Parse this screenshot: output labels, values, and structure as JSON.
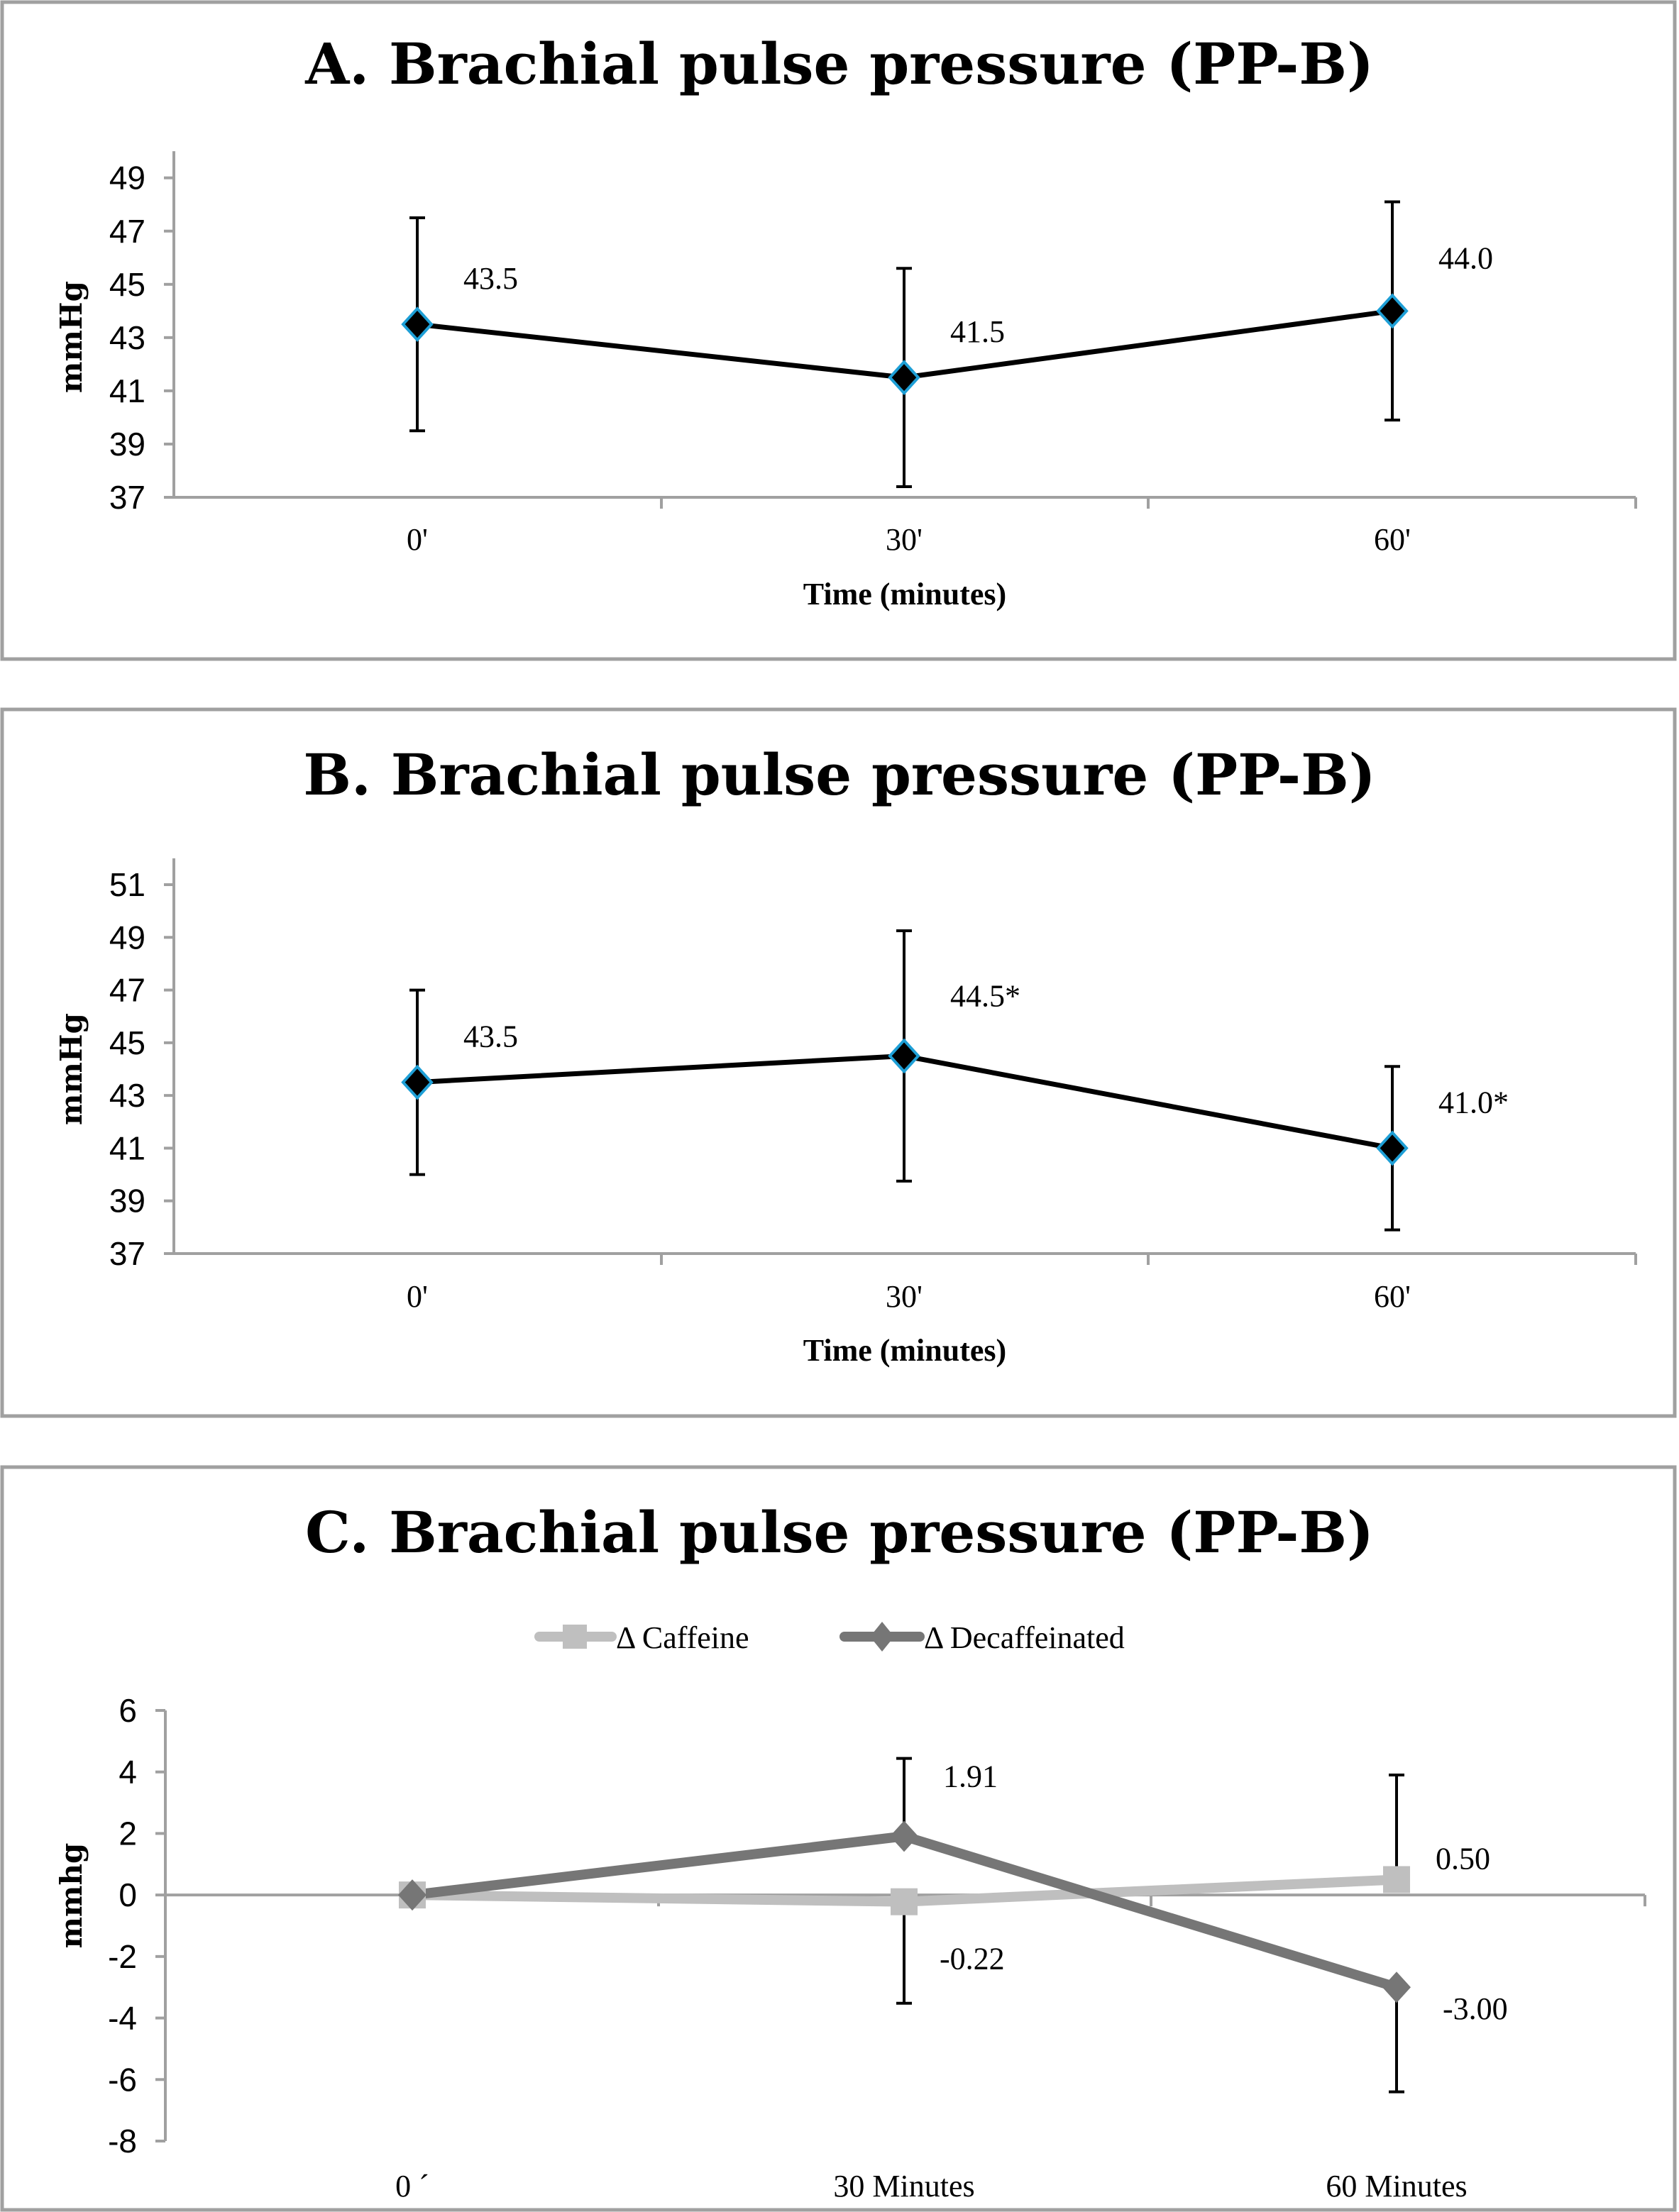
{
  "chart_data": [
    {
      "type": "line",
      "title": "A. Brachial pulse pressure (PP-B)",
      "xlabel": "Time (minutes)",
      "ylabel": "mmHg",
      "categories": [
        "0'",
        "30'",
        "60'"
      ],
      "ylim": [
        37,
        50
      ],
      "yticks": [
        37,
        39,
        41,
        43,
        45,
        47,
        49
      ],
      "grid": false,
      "legend": "none",
      "series": [
        {
          "name": "PP-B",
          "values": [
            43.5,
            41.5,
            44.0
          ],
          "errors": [
            4.0,
            4.1,
            4.1
          ],
          "labels": [
            "43.5",
            "41.5",
            "44.0"
          ],
          "line_color": "#000000",
          "marker": "diamond",
          "marker_fill": "#000000",
          "marker_stroke": "#1e9fd6"
        }
      ]
    },
    {
      "type": "line",
      "title": "B. Brachial pulse pressure (PP-B)",
      "xlabel": "Time (minutes)",
      "ylabel": "mmHg",
      "categories": [
        "0'",
        "30'",
        "60'"
      ],
      "ylim": [
        37,
        52
      ],
      "yticks": [
        37,
        39,
        41,
        43,
        45,
        47,
        49,
        51
      ],
      "grid": false,
      "legend": "none",
      "series": [
        {
          "name": "PP-B",
          "values": [
            43.5,
            44.5,
            41.0
          ],
          "errors": [
            3.5,
            4.75,
            3.1
          ],
          "labels": [
            "43.5",
            "44.5*",
            "41.0*"
          ],
          "line_color": "#000000",
          "marker": "diamond",
          "marker_fill": "#000000",
          "marker_stroke": "#1e9fd6"
        }
      ]
    },
    {
      "type": "line",
      "title": "C. Brachial pulse pressure (PP-B)",
      "xlabel": "",
      "ylabel": "mmhg",
      "categories": [
        "0 ´",
        "30 Minutes",
        "60 Minutes"
      ],
      "ylim": [
        -8,
        6
      ],
      "yticks": [
        -8,
        -6,
        -4,
        -2,
        0,
        2,
        4,
        6
      ],
      "grid": false,
      "legend": "top",
      "series": [
        {
          "name": "Δ Caffeine",
          "values": [
            0,
            -0.22,
            0.5
          ],
          "errors": [
            0,
            3.3,
            3.4
          ],
          "error_direction": [
            "none",
            "down",
            "up"
          ],
          "labels": [
            "",
            "-0.22",
            "0.50"
          ],
          "line_color": "#bfbfbf",
          "marker": "square"
        },
        {
          "name": "Δ Decaffeinated",
          "values": [
            0,
            1.91,
            -3.0
          ],
          "errors": [
            0,
            2.53,
            3.4
          ],
          "error_direction": [
            "none",
            "up",
            "down"
          ],
          "labels": [
            "",
            "1.91",
            "-3.00"
          ],
          "line_color": "#767676",
          "marker": "diamond"
        }
      ]
    }
  ]
}
